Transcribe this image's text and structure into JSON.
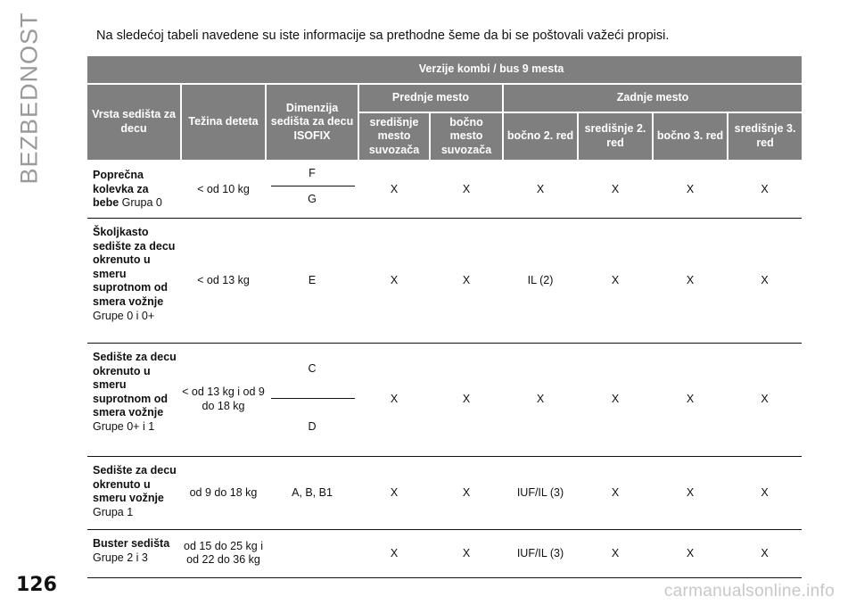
{
  "side_label": "BEZBEDNOST",
  "page_number": "126",
  "watermark": "carmanualsonline.info",
  "intro": "Na sledećoj tabeli navedene su iste informacije sa prethodne šeme da bi se poštovali važeći propisi.",
  "table": {
    "group_header": "Verzije kombi / bus 9 mesta",
    "col_type": "Vrsta sedišta za decu",
    "col_weight": "Težina deteta",
    "col_isofix": "Dimenzija sedišta za decu ISOFIX",
    "front_header": "Prednje mesto",
    "rear_header": "Zadnje mesto",
    "sub_cols": [
      "središnje mesto suvozača",
      "bočno mesto suvozača",
      "bočno 2. red",
      "središnje 2. red",
      "bočno 3. red",
      "središnje 3. red"
    ],
    "rows": [
      {
        "name": "Poprečna kolevka za bebe",
        "group": "Grupa 0",
        "weight": "< od 10 kg",
        "isofix_top": "F",
        "isofix_bottom": "G",
        "values": [
          "X",
          "X",
          "X",
          "X",
          "X",
          "X"
        ]
      },
      {
        "name": "Školjkasto sedište za decu okrenuto u smeru suprotnom od smera vožnje",
        "group": "Grupe 0 i 0+",
        "weight": "< od 13 kg",
        "isofix": "E",
        "values": [
          "X",
          "X",
          "IL (2)",
          "X",
          "X",
          "X"
        ]
      },
      {
        "name": "Sedište za decu okrenuto u smeru suprotnom od smera vožnje",
        "group": "Grupe 0+ i 1",
        "weight": "< od 13 kg i od 9 do 18 kg",
        "isofix_top": "C",
        "isofix_bottom": "D",
        "values": [
          "X",
          "X",
          "X",
          "X",
          "X",
          "X"
        ]
      },
      {
        "name": "Sedište za decu okrenuto u smeru vožnje",
        "group": "Grupa 1",
        "weight": "od 9 do 18 kg",
        "isofix": "A, B, B1",
        "values": [
          "X",
          "X",
          "IUF/IL (3)",
          "X",
          "X",
          "X"
        ]
      },
      {
        "name": "Buster sedišta",
        "group": "Grupe 2 i 3",
        "weight": "od 15 do 25 kg i od 22 do 36 kg",
        "isofix": "",
        "values": [
          "X",
          "X",
          "IUF/IL (3)",
          "X",
          "X",
          "X"
        ]
      }
    ]
  }
}
